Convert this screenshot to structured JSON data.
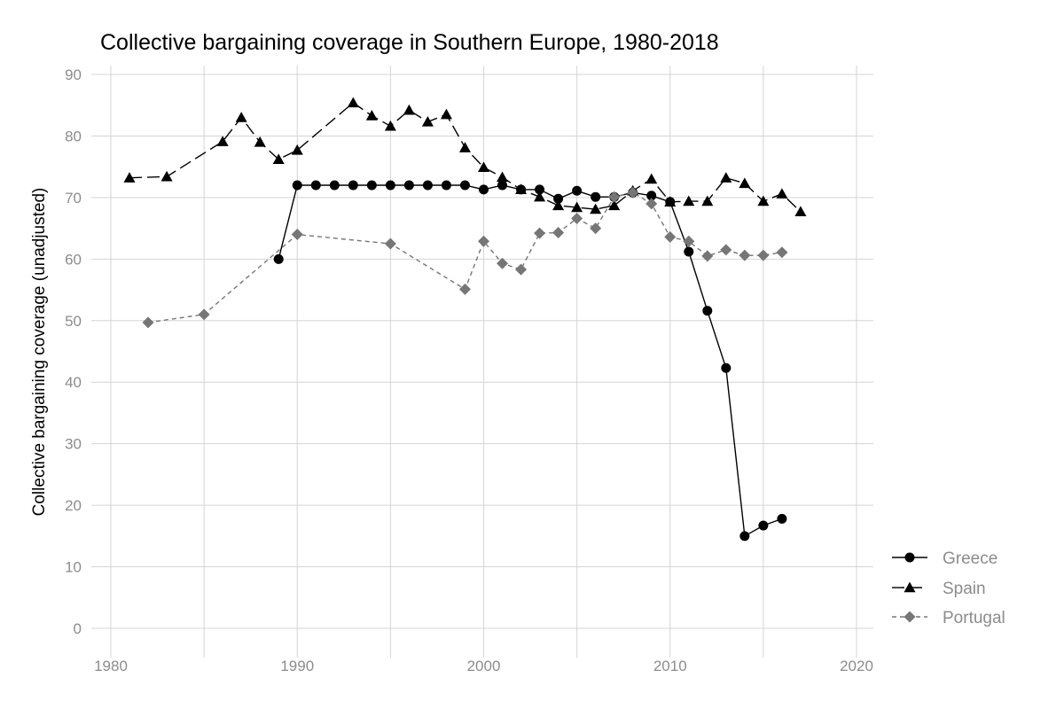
{
  "chart_data": {
    "type": "line",
    "title": "Collective bargaining coverage  in Southern Europe, 1980-2018",
    "xlabel": "",
    "ylabel": "Collective bargaining coverage (unadjusted)",
    "xlim": [
      1980,
      2020
    ],
    "ylim": [
      0,
      90
    ],
    "x_ticks": [
      1980,
      1990,
      2000,
      2010,
      2020
    ],
    "y_ticks": [
      0,
      10,
      20,
      30,
      40,
      50,
      60,
      70,
      80,
      90
    ],
    "grid": true,
    "legend_position": "right",
    "series": [
      {
        "name": "Greece",
        "color": "#000000",
        "marker": "circle",
        "line_style": "solid",
        "x": [
          1989,
          1990,
          1991,
          1992,
          1993,
          1994,
          1995,
          1996,
          1997,
          1998,
          1999,
          2000,
          2001,
          2002,
          2003,
          2004,
          2005,
          2006,
          2007,
          2008,
          2009,
          2010,
          2011,
          2012,
          2013,
          2014,
          2015,
          2016
        ],
        "y": [
          60,
          72,
          72,
          72,
          72,
          72,
          72,
          72,
          72,
          72,
          72,
          71.3,
          72,
          71.3,
          71.3,
          69.8,
          71.1,
          70.1,
          70.1,
          70.8,
          70.3,
          69.3,
          61.2,
          51.6,
          42.3,
          15,
          16.7,
          17.8
        ]
      },
      {
        "name": "Spain",
        "color": "#000000",
        "marker": "triangle",
        "line_style": "longdash",
        "x": [
          1981,
          1983,
          1986,
          1987,
          1988,
          1989,
          1990,
          1993,
          1994,
          1995,
          1996,
          1997,
          1998,
          1999,
          2000,
          2001,
          2002,
          2003,
          2004,
          2005,
          2006,
          2007,
          2008,
          2009,
          2010,
          2011,
          2012,
          2013,
          2014,
          2015,
          2016,
          2017
        ],
        "y": [
          73.2,
          73.4,
          79.1,
          83,
          79,
          76.2,
          77.7,
          85.4,
          83.3,
          81.6,
          84.2,
          82.3,
          83.5,
          78.1,
          74.9,
          73.3,
          71.3,
          70.1,
          68.7,
          68.4,
          68.1,
          68.7,
          71.1,
          73,
          69.3,
          69.4,
          69.4,
          73.2,
          72.3,
          69.4,
          70.6,
          67.7
        ]
      },
      {
        "name": "Portugal",
        "color": "#767676",
        "marker": "diamond",
        "line_style": "dashed",
        "x": [
          1982,
          1985,
          1990,
          1995,
          1999,
          2000,
          2001,
          2002,
          2003,
          2004,
          2005,
          2006,
          2007,
          2008,
          2009,
          2010,
          2011,
          2012,
          2013,
          2014,
          2015,
          2016
        ],
        "y": [
          49.7,
          51,
          64,
          62.5,
          55.1,
          62.9,
          59.3,
          58.3,
          64.2,
          64.3,
          66.6,
          65,
          70.1,
          70.8,
          69,
          63.6,
          62.9,
          60.5,
          61.5,
          60.6,
          60.6,
          61.1
        ]
      }
    ]
  }
}
